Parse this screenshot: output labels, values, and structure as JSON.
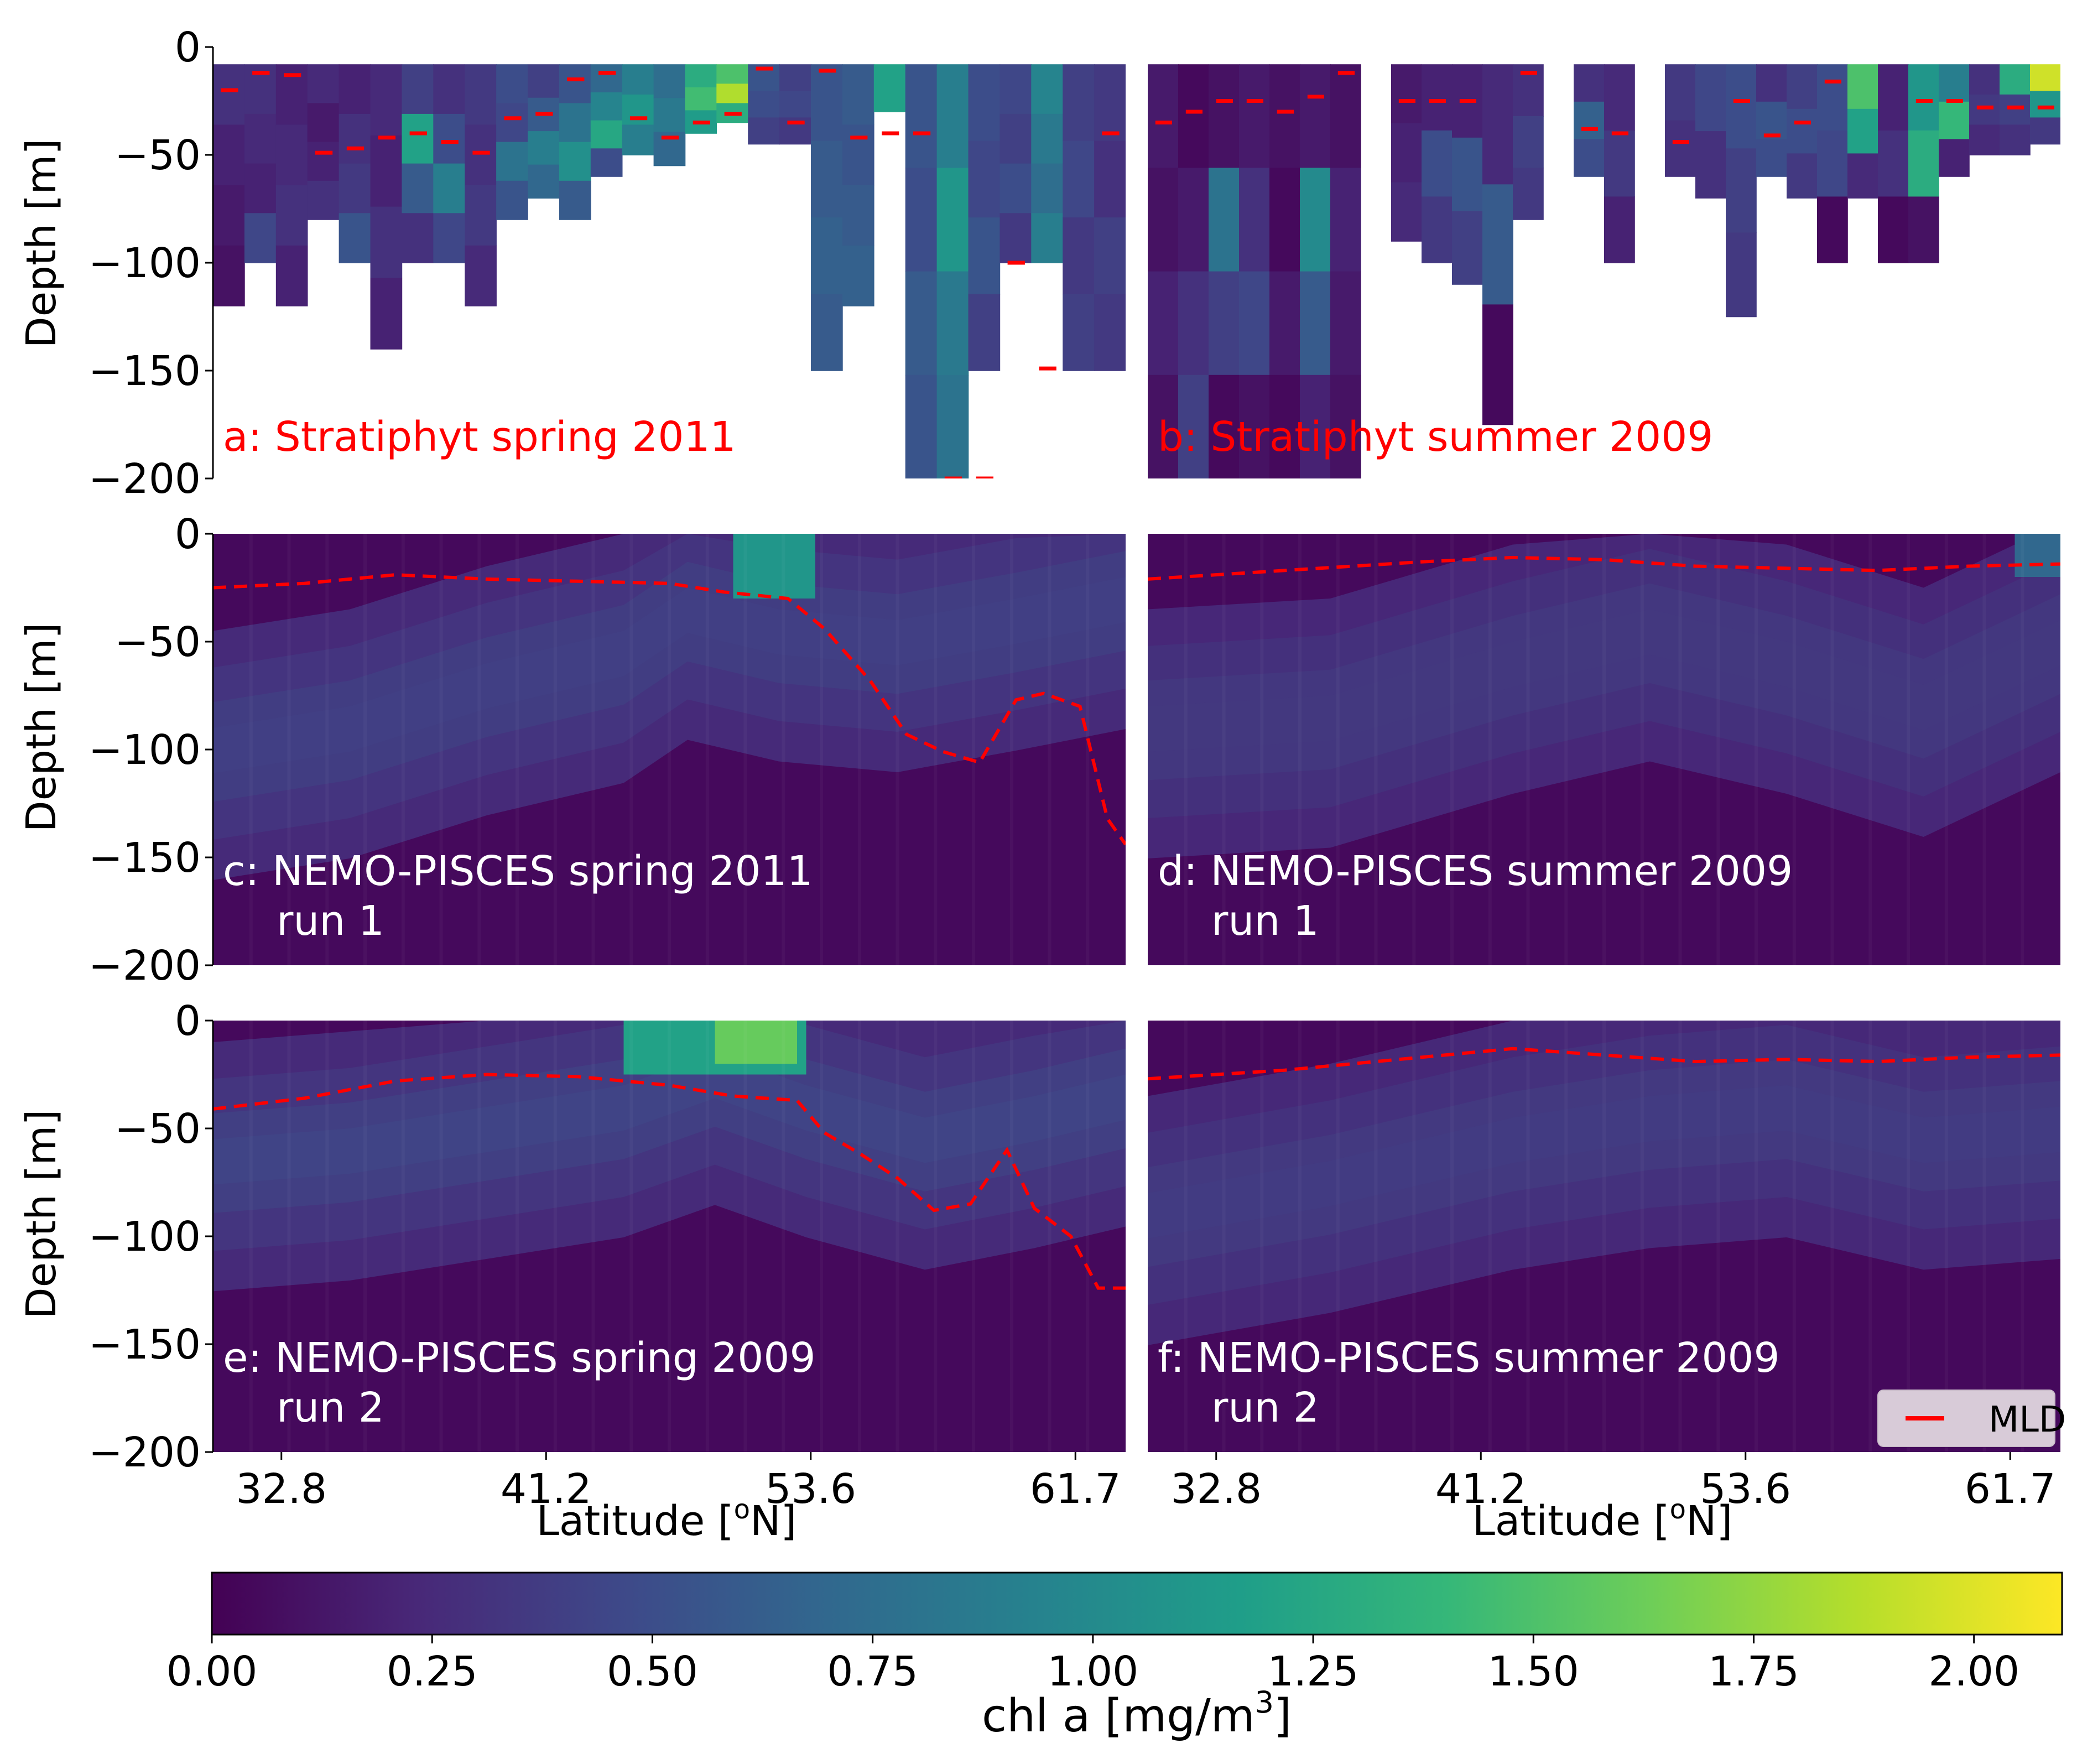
{
  "figure": {
    "colorbar": {
      "label": "chl a [mg/m3]",
      "label_main": "chl a [mg/m",
      "label_sup": "3",
      "label_end": "]",
      "range": [
        0,
        2.1
      ],
      "ticks": [
        "0.00",
        "0.25",
        "0.50",
        "0.75",
        "1.00",
        "1.25",
        "1.50",
        "1.75",
        "2.00"
      ],
      "tick_values": [
        0,
        0.25,
        0.5,
        0.75,
        1.0,
        1.25,
        1.5,
        1.75,
        2.0
      ],
      "colormap": "viridis",
      "stops": [
        "#440154",
        "#482878",
        "#3e4989",
        "#31688e",
        "#26828e",
        "#1f9e89",
        "#35b779",
        "#6ece58",
        "#b5de2b",
        "#fde725"
      ]
    },
    "y_axis": {
      "label": "Depth [m]",
      "ticks": [
        "0",
        "−50",
        "−100",
        "−150",
        "−200"
      ],
      "tick_values": [
        0,
        -50,
        -100,
        -150,
        -200
      ]
    },
    "x_axis": {
      "label": "Latitude [oN]",
      "label_main": "Latitude [",
      "label_sup": "o",
      "label_end": "N]",
      "ticks": [
        "32.8",
        "41.2",
        "53.6",
        "61.7"
      ]
    },
    "legend": {
      "label": "MLD",
      "color": "#ff0000",
      "placement": "lower-right of panel f"
    },
    "mld_color": "#ff0000"
  },
  "chart_data": [
    {
      "id": "a",
      "type": "heatmap",
      "title": "a: Stratiphyt spring 2011",
      "title_color": "#ff0000",
      "xlabel": "",
      "ylabel": "Depth [m]",
      "ylim": [
        -200,
        0
      ],
      "columns": [
        {
          "bottom": -120,
          "chl": [
            0.3,
            0.2,
            0.15,
            0.1
          ]
        },
        {
          "bottom": -100,
          "chl": [
            0.3,
            0.25,
            0.2,
            0.45
          ]
        },
        {
          "bottom": -120,
          "chl": [
            0.2,
            0.25,
            0.3,
            0.2
          ]
        },
        {
          "bottom": -80,
          "chl": [
            0.25,
            0.15,
            0.2,
            0.3
          ]
        },
        {
          "bottom": -100,
          "chl": [
            0.2,
            0.3,
            0.35,
            0.55
          ]
        },
        {
          "bottom": -140,
          "chl": [
            0.25,
            0.2,
            0.3,
            0.2
          ]
        },
        {
          "bottom": -100,
          "chl": [
            0.4,
            1.2,
            0.6,
            0.3
          ]
        },
        {
          "bottom": -100,
          "chl": [
            0.3,
            0.5,
            0.9,
            0.45
          ]
        },
        {
          "bottom": -120,
          "chl": [
            0.35,
            0.3,
            0.35,
            0.25
          ]
        },
        {
          "bottom": -80,
          "chl": [
            0.5,
            0.45,
            0.8,
            0.55
          ]
        },
        {
          "bottom": -70,
          "chl": [
            0.4,
            0.6,
            0.9,
            0.7
          ]
        },
        {
          "bottom": -80,
          "chl": [
            0.55,
            0.8,
            1.05,
            0.6
          ]
        },
        {
          "bottom": -60,
          "chl": [
            0.7,
            0.95,
            1.25,
            0.5
          ]
        },
        {
          "bottom": -50,
          "chl": [
            0.9,
            1.1,
            0.9
          ]
        },
        {
          "bottom": -55,
          "chl": [
            0.75,
            0.85,
            0.7
          ]
        },
        {
          "bottom": -40,
          "chl": [
            1.3,
            1.45,
            1.15
          ]
        },
        {
          "bottom": -35,
          "chl": [
            1.5,
            1.85,
            1.3
          ]
        },
        {
          "bottom": -45,
          "chl": [
            0.55,
            0.5,
            0.4
          ]
        },
        {
          "bottom": -45,
          "chl": [
            0.4,
            0.45,
            0.35
          ]
        },
        {
          "bottom": -150,
          "chl": [
            0.55,
            0.6,
            0.65,
            0.6
          ]
        },
        {
          "bottom": -120,
          "chl": [
            0.6,
            0.55,
            0.6,
            0.65
          ]
        },
        {
          "bottom": -30,
          "chl": [
            1.2
          ]
        },
        {
          "bottom": -200,
          "chl": [
            0.55,
            0.5,
            0.6,
            0.55
          ]
        },
        {
          "bottom": -200,
          "chl": [
            0.9,
            1.1,
            0.85,
            0.8
          ]
        },
        {
          "bottom": -150,
          "chl": [
            0.5,
            0.45,
            0.55,
            0.4
          ]
        },
        {
          "bottom": -100,
          "chl": [
            0.45,
            0.4,
            0.5,
            0.35
          ]
        },
        {
          "bottom": -100,
          "chl": [
            0.95,
            0.85,
            0.75,
            0.9
          ]
        },
        {
          "bottom": -150,
          "chl": [
            0.4,
            0.45,
            0.35,
            0.4
          ]
        },
        {
          "bottom": -150,
          "chl": [
            0.35,
            0.3,
            0.4,
            0.35
          ]
        }
      ],
      "mld": [
        -20,
        -12,
        -13,
        -49,
        -47,
        -42,
        -40,
        -44,
        -49,
        -33,
        -31,
        -15,
        -12,
        -33,
        -42,
        -35,
        -31,
        -10,
        -35,
        -11,
        -42,
        -40,
        -40,
        -200,
        -200,
        -100,
        -149,
        null,
        -40
      ]
    },
    {
      "id": "b",
      "type": "heatmap",
      "title": "b: Stratiphyt summer 2009",
      "title_color": "#ff0000",
      "xlabel": "",
      "ylabel": "",
      "ylim": [
        -200,
        0
      ],
      "columns": [
        {
          "bottom": -200,
          "chl": [
            0.15,
            0.1,
            0.2,
            0.1
          ]
        },
        {
          "bottom": -200,
          "chl": [
            0.05,
            0.15,
            0.3,
            0.4
          ]
        },
        {
          "bottom": -200,
          "chl": [
            0.1,
            0.8,
            0.4,
            0.05
          ]
        },
        {
          "bottom": -200,
          "chl": [
            0.15,
            0.3,
            0.45,
            0.1
          ]
        },
        {
          "bottom": -200,
          "chl": [
            0.1,
            0.05,
            0.15,
            0.05
          ]
        },
        {
          "bottom": -200,
          "chl": [
            0.15,
            1.0,
            0.6,
            0.2
          ]
        },
        {
          "bottom": -200,
          "chl": [
            0.1,
            0.2,
            0.15,
            0.1
          ]
        },
        {
          "bottom": null,
          "chl": []
        },
        {
          "bottom": -90,
          "chl": [
            0.15,
            0.2,
            0.25
          ]
        },
        {
          "bottom": -100,
          "chl": [
            0.2,
            0.5,
            0.35
          ]
        },
        {
          "bottom": -110,
          "chl": [
            0.2,
            0.55,
            0.4
          ]
        },
        {
          "bottom": -175,
          "chl": [
            0.25,
            0.6,
            0.05
          ]
        },
        {
          "bottom": -80,
          "chl": [
            0.3,
            0.4,
            0.35
          ]
        },
        {
          "bottom": null,
          "chl": []
        },
        {
          "bottom": -60,
          "chl": [
            0.3,
            0.65,
            0.5
          ]
        },
        {
          "bottom": -100,
          "chl": [
            0.25,
            0.35,
            0.2
          ]
        },
        {
          "bottom": null,
          "chl": []
        },
        {
          "bottom": -60,
          "chl": [
            0.35,
            0.3
          ]
        },
        {
          "bottom": -70,
          "chl": [
            0.45,
            0.3
          ]
        },
        {
          "bottom": -125,
          "chl": [
            0.5,
            0.4,
            0.35
          ]
        },
        {
          "bottom": -60,
          "chl": [
            0.3,
            0.55,
            0.5
          ]
        },
        {
          "bottom": -70,
          "chl": [
            0.4,
            0.5,
            0.35
          ]
        },
        {
          "bottom": -100,
          "chl": [
            0.5,
            0.45,
            0.05
          ]
        },
        {
          "bottom": -70,
          "chl": [
            1.5,
            1.2,
            0.25
          ]
        },
        {
          "bottom": -100,
          "chl": [
            0.2,
            0.3,
            0.05
          ]
        },
        {
          "bottom": -100,
          "chl": [
            1.1,
            1.3,
            0.1
          ]
        },
        {
          "bottom": -60,
          "chl": [
            0.9,
            1.4,
            0.2
          ]
        },
        {
          "bottom": -50,
          "chl": [
            0.3,
            0.35,
            0.25
          ]
        },
        {
          "bottom": -50,
          "chl": [
            1.3,
            0.4,
            0.3
          ]
        },
        {
          "bottom": -45,
          "chl": [
            1.95,
            1.1,
            0.35
          ]
        }
      ],
      "mld": [
        -35,
        -30,
        -25,
        -25,
        -30,
        -23,
        -12,
        null,
        -25,
        -25,
        -25,
        null,
        -12,
        null,
        -38,
        -40,
        null,
        -44,
        null,
        -25,
        -41,
        -35,
        -16,
        null,
        null,
        -25,
        -25,
        -28,
        -28,
        -28
      ]
    },
    {
      "id": "c",
      "type": "heatmap",
      "title": "c: NEMO-PISCES spring 2011",
      "subtitle": "run 1",
      "title_color": "#ffffff",
      "xlabel": "",
      "ylabel": "Depth [m]",
      "ylim": [
        -200,
        0
      ],
      "dcm": [
        [
          0,
          -100,
          0.38
        ],
        [
          0.15,
          -90,
          0.4
        ],
        [
          0.3,
          -70,
          0.38
        ],
        [
          0.45,
          -55,
          0.38
        ],
        [
          0.52,
          -35,
          0.45
        ],
        [
          0.62,
          -45,
          0.45
        ],
        [
          0.75,
          -50,
          0.38
        ],
        [
          0.88,
          -40,
          0.35
        ],
        [
          1.0,
          -30,
          0.4
        ]
      ],
      "surface_patches": [
        {
          "x": [
            0.57,
            0.66
          ],
          "depth": [
            0,
            -30
          ],
          "chl": 1.1
        }
      ],
      "mld": [
        [
          0,
          -25
        ],
        [
          0.1,
          -23
        ],
        [
          0.2,
          -19
        ],
        [
          0.3,
          -21
        ],
        [
          0.4,
          -22
        ],
        [
          0.5,
          -23
        ],
        [
          0.56,
          -27
        ],
        [
          0.63,
          -30
        ],
        [
          0.67,
          -44
        ],
        [
          0.72,
          -68
        ],
        [
          0.76,
          -93
        ],
        [
          0.8,
          -101
        ],
        [
          0.84,
          -106
        ],
        [
          0.88,
          -77
        ],
        [
          0.91,
          -74
        ],
        [
          0.95,
          -80
        ],
        [
          0.98,
          -132
        ],
        [
          1.0,
          -144
        ]
      ]
    },
    {
      "id": "d",
      "type": "heatmap",
      "title": "d: NEMO-PISCES summer 2009",
      "subtitle": "run 1",
      "title_color": "#ffffff",
      "xlabel": "",
      "ylabel": "",
      "ylim": [
        -200,
        0
      ],
      "dcm": [
        [
          0,
          -90,
          0.3
        ],
        [
          0.2,
          -85,
          0.32
        ],
        [
          0.4,
          -60,
          0.35
        ],
        [
          0.55,
          -45,
          0.38
        ],
        [
          0.7,
          -60,
          0.36
        ],
        [
          0.85,
          -80,
          0.36
        ],
        [
          0.95,
          -60,
          0.35
        ],
        [
          1.0,
          -50,
          0.35
        ]
      ],
      "surface_patches": [
        {
          "x": [
            0.95,
            1.0
          ],
          "depth": [
            0,
            -20
          ],
          "chl": 0.7
        }
      ],
      "mld": [
        [
          0,
          -21
        ],
        [
          0.15,
          -17
        ],
        [
          0.3,
          -13
        ],
        [
          0.4,
          -11
        ],
        [
          0.5,
          -12
        ],
        [
          0.6,
          -15
        ],
        [
          0.7,
          -16
        ],
        [
          0.8,
          -17
        ],
        [
          0.9,
          -15
        ],
        [
          1.0,
          -14
        ]
      ]
    },
    {
      "id": "e",
      "type": "heatmap",
      "title": "e: NEMO-PISCES spring 2009",
      "subtitle": "run 2",
      "title_color": "#ffffff",
      "xlabel": "Latitude [oN]",
      "ylabel": "Depth [m]",
      "ylim": [
        -200,
        0
      ],
      "dcm": [
        [
          0,
          -65,
          0.35
        ],
        [
          0.15,
          -60,
          0.38
        ],
        [
          0.3,
          -50,
          0.4
        ],
        [
          0.45,
          -40,
          0.45
        ],
        [
          0.55,
          -25,
          0.6
        ],
        [
          0.65,
          -40,
          0.5
        ],
        [
          0.78,
          -55,
          0.4
        ],
        [
          0.9,
          -45,
          0.38
        ],
        [
          1.0,
          -35,
          0.4
        ]
      ],
      "surface_patches": [
        {
          "x": [
            0.45,
            0.65
          ],
          "depth": [
            0,
            -25
          ],
          "chl": 1.2
        },
        {
          "x": [
            0.55,
            0.64
          ],
          "depth": [
            0,
            -20
          ],
          "chl": 1.6
        }
      ],
      "mld": [
        [
          0,
          -41
        ],
        [
          0.1,
          -36
        ],
        [
          0.2,
          -28
        ],
        [
          0.3,
          -25
        ],
        [
          0.4,
          -26
        ],
        [
          0.5,
          -30
        ],
        [
          0.57,
          -35
        ],
        [
          0.64,
          -37
        ],
        [
          0.67,
          -52
        ],
        [
          0.71,
          -62
        ],
        [
          0.75,
          -73
        ],
        [
          0.79,
          -88
        ],
        [
          0.83,
          -85
        ],
        [
          0.87,
          -60
        ],
        [
          0.9,
          -87
        ],
        [
          0.94,
          -100
        ],
        [
          0.97,
          -124
        ],
        [
          1.0,
          -124
        ]
      ]
    },
    {
      "id": "f",
      "type": "heatmap",
      "title": "f: NEMO-PISCES summer 2009",
      "subtitle": "run 2",
      "title_color": "#ffffff",
      "xlabel": "Latitude [oN]",
      "ylabel": "",
      "ylim": [
        -200,
        0
      ],
      "dcm": [
        [
          0,
          -90,
          0.35
        ],
        [
          0.2,
          -75,
          0.36
        ],
        [
          0.4,
          -55,
          0.37
        ],
        [
          0.55,
          -45,
          0.36
        ],
        [
          0.7,
          -40,
          0.38
        ],
        [
          0.85,
          -55,
          0.36
        ],
        [
          1.0,
          -50,
          0.37
        ]
      ],
      "surface_patches": [],
      "mld": [
        [
          0,
          -27
        ],
        [
          0.15,
          -23
        ],
        [
          0.3,
          -17
        ],
        [
          0.4,
          -13
        ],
        [
          0.5,
          -16
        ],
        [
          0.6,
          -19
        ],
        [
          0.7,
          -18
        ],
        [
          0.8,
          -19
        ],
        [
          0.9,
          -17
        ],
        [
          1.0,
          -16
        ]
      ]
    }
  ]
}
